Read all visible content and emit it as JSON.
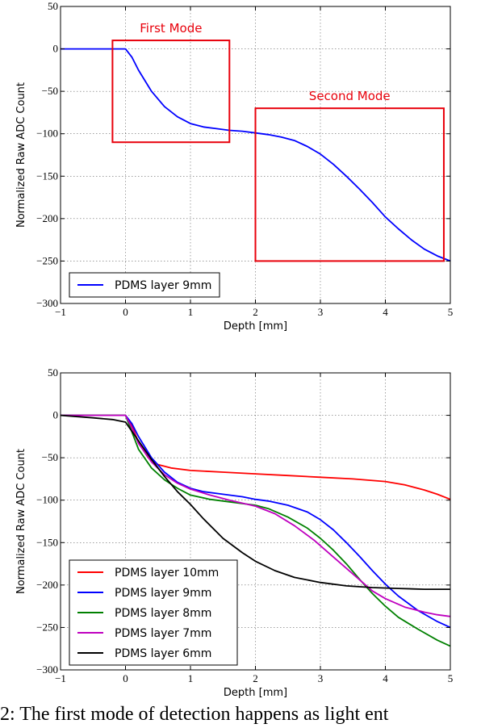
{
  "chart_data": [
    {
      "type": "line",
      "title": "",
      "xlabel": "Depth [mm]",
      "ylabel": "Normalized Raw ADC Count",
      "xlim": [
        -1,
        5
      ],
      "ylim": [
        -300,
        50
      ],
      "xticks": [
        -1,
        0,
        1,
        2,
        3,
        4,
        5
      ],
      "yticks": [
        50,
        0,
        -50,
        -100,
        -150,
        -200,
        -250,
        -300
      ],
      "tick_labels_x": [
        "−1",
        "0",
        "1",
        "2",
        "3",
        "4",
        "5"
      ],
      "tick_labels_y": [
        "50",
        "0",
        "−50",
        "−100",
        "−150",
        "−200",
        "−250",
        "−300"
      ],
      "grid": true,
      "legend_position": "bottom-left",
      "series": [
        {
          "name": "PDMS layer 9mm",
          "color": "#0000ff",
          "x": [
            -1,
            -0.5,
            -0.2,
            0,
            0.1,
            0.2,
            0.4,
            0.6,
            0.8,
            1.0,
            1.2,
            1.4,
            1.6,
            1.8,
            2.0,
            2.2,
            2.4,
            2.6,
            2.8,
            3.0,
            3.2,
            3.4,
            3.6,
            3.8,
            4.0,
            4.2,
            4.4,
            4.6,
            4.8,
            5.0
          ],
          "y": [
            0,
            0,
            0,
            0,
            -10,
            -25,
            -50,
            -68,
            -80,
            -88,
            -92,
            -94,
            -96,
            -97,
            -99,
            -101,
            -104,
            -108,
            -115,
            -124,
            -136,
            -150,
            -165,
            -181,
            -198,
            -212,
            -225,
            -236,
            -244,
            -250
          ]
        }
      ],
      "annotations": [
        {
          "text": "First Mode",
          "color": "#e8000b",
          "x0": -0.2,
          "x1": 1.6,
          "y0": -110,
          "y1": 10
        },
        {
          "text": "Second Mode",
          "color": "#e8000b",
          "x0": 2.0,
          "x1": 4.9,
          "y0": -250,
          "y1": -70
        }
      ]
    },
    {
      "type": "line",
      "title": "",
      "xlabel": "Depth [mm]",
      "ylabel": "Normalized Raw ADC Count",
      "xlim": [
        -1,
        5
      ],
      "ylim": [
        -300,
        50
      ],
      "xticks": [
        -1,
        0,
        1,
        2,
        3,
        4,
        5
      ],
      "yticks": [
        50,
        0,
        -50,
        -100,
        -150,
        -200,
        -250,
        -300
      ],
      "tick_labels_x": [
        "−1",
        "0",
        "1",
        "2",
        "3",
        "4",
        "5"
      ],
      "tick_labels_y": [
        "50",
        "0",
        "−50",
        "−100",
        "−150",
        "−200",
        "−250",
        "−300"
      ],
      "grid": true,
      "legend_position": "bottom-left",
      "series": [
        {
          "name": "PDMS layer 10mm",
          "color": "#ff0000",
          "x": [
            -1,
            -0.2,
            0,
            0.1,
            0.2,
            0.35,
            0.5,
            0.7,
            1.0,
            1.5,
            2.0,
            2.5,
            3.0,
            3.5,
            4.0,
            4.3,
            4.6,
            4.8,
            5.0
          ],
          "y": [
            0,
            0,
            0,
            -12,
            -32,
            -50,
            -58,
            -62,
            -65,
            -67,
            -69,
            -71,
            -73,
            -75,
            -78,
            -82,
            -88,
            -93,
            -99
          ]
        },
        {
          "name": "PDMS layer 9mm",
          "color": "#0000ff",
          "x": [
            -1,
            -0.2,
            0,
            0.1,
            0.2,
            0.4,
            0.6,
            0.8,
            1.0,
            1.2,
            1.5,
            1.8,
            2.0,
            2.2,
            2.5,
            2.8,
            3.0,
            3.2,
            3.4,
            3.6,
            3.8,
            4.0,
            4.2,
            4.5,
            4.8,
            5.0
          ],
          "y": [
            0,
            0,
            0,
            -10,
            -25,
            -50,
            -67,
            -79,
            -86,
            -90,
            -93,
            -96,
            -99,
            -101,
            -106,
            -114,
            -123,
            -135,
            -150,
            -166,
            -183,
            -199,
            -213,
            -230,
            -243,
            -250
          ]
        },
        {
          "name": "PDMS layer 8mm",
          "color": "#008000",
          "x": [
            -1,
            -0.2,
            0,
            0.1,
            0.2,
            0.4,
            0.6,
            0.8,
            1.0,
            1.3,
            1.6,
            2.0,
            2.2,
            2.5,
            2.8,
            3.0,
            3.2,
            3.4,
            3.6,
            3.8,
            4.0,
            4.2,
            4.5,
            4.8,
            5.0
          ],
          "y": [
            0,
            0,
            0,
            -20,
            -40,
            -62,
            -76,
            -86,
            -94,
            -99,
            -102,
            -106,
            -110,
            -120,
            -133,
            -145,
            -159,
            -175,
            -193,
            -210,
            -225,
            -238,
            -252,
            -265,
            -272
          ]
        },
        {
          "name": "PDMS layer 7mm",
          "color": "#bf00bf",
          "x": [
            -1,
            -0.2,
            0,
            0.1,
            0.2,
            0.4,
            0.6,
            0.8,
            1.0,
            1.3,
            1.6,
            2.0,
            2.3,
            2.6,
            2.9,
            3.2,
            3.5,
            3.8,
            4.0,
            4.3,
            4.6,
            4.8,
            5.0
          ],
          "y": [
            0,
            0,
            0,
            -15,
            -33,
            -55,
            -70,
            -80,
            -87,
            -94,
            -100,
            -107,
            -116,
            -130,
            -147,
            -167,
            -187,
            -207,
            -216,
            -226,
            -232,
            -235,
            -237
          ]
        },
        {
          "name": "PDMS layer 6mm",
          "color": "#000000",
          "x": [
            -1,
            -0.5,
            -0.2,
            0,
            0.2,
            0.4,
            0.6,
            0.8,
            1.0,
            1.2,
            1.5,
            1.8,
            2.0,
            2.3,
            2.6,
            3.0,
            3.4,
            3.8,
            4.2,
            4.6,
            5.0
          ],
          "y": [
            0,
            -3,
            -5,
            -8,
            -30,
            -52,
            -72,
            -90,
            -105,
            -122,
            -145,
            -162,
            -172,
            -183,
            -191,
            -197,
            -201,
            -203,
            -204,
            -205,
            -205
          ]
        }
      ],
      "annotations": []
    }
  ],
  "caption": {
    "text": "2: The first mode of detection happens as light ent"
  }
}
